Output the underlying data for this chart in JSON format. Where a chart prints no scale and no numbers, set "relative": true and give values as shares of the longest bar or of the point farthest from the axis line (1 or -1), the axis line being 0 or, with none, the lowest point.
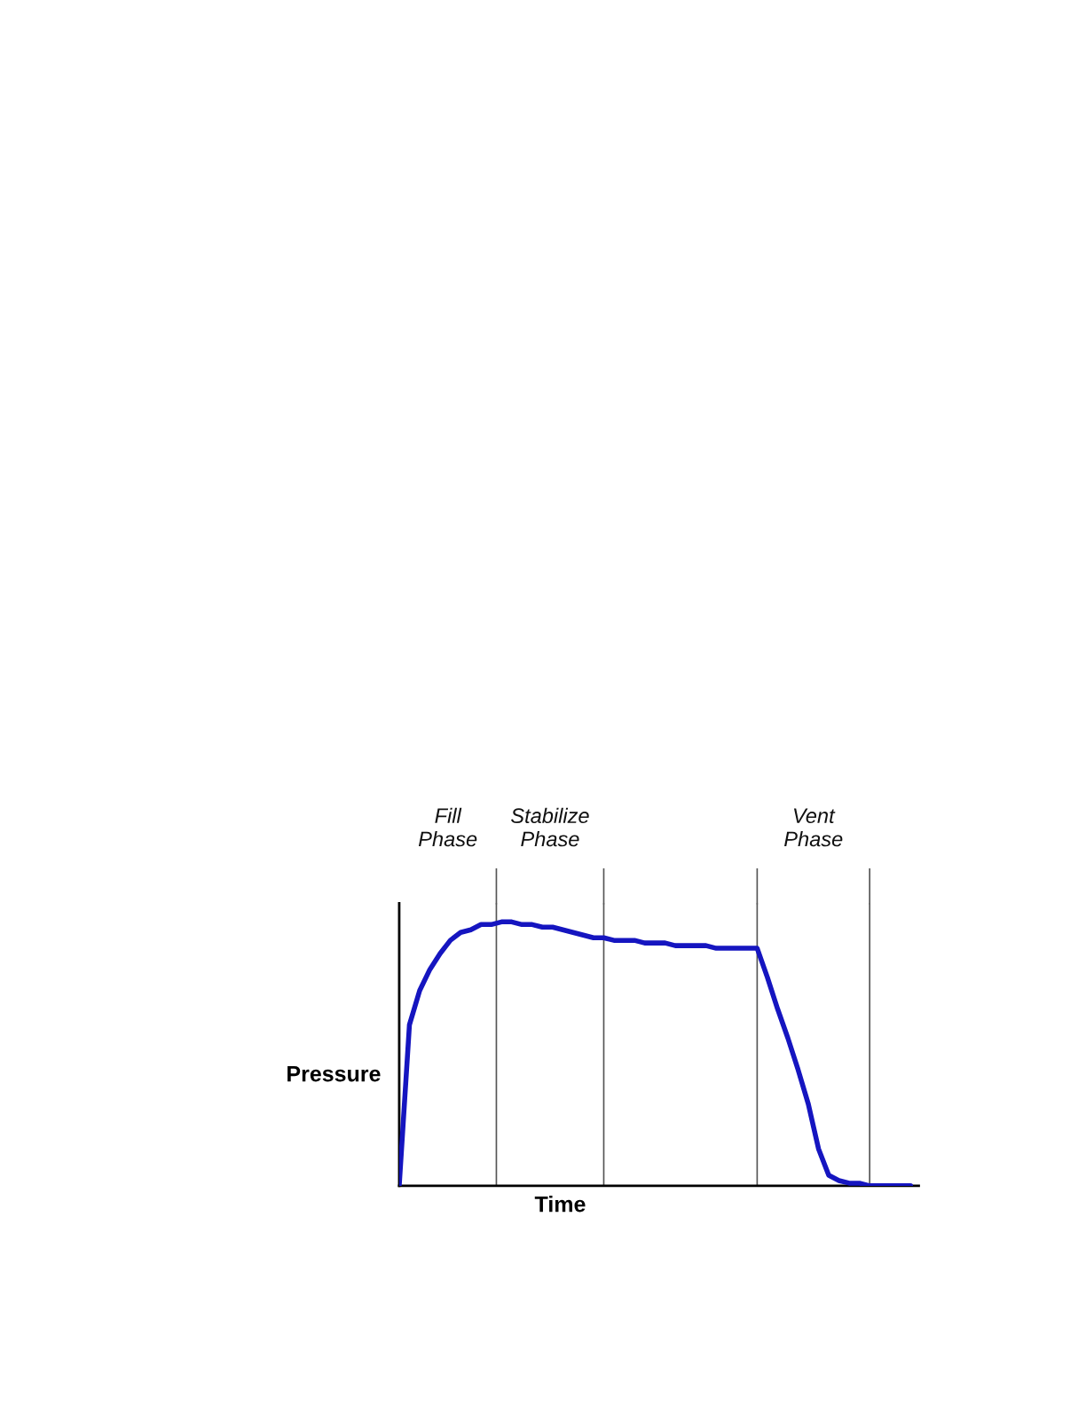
{
  "chart_data": {
    "type": "line",
    "relative": true,
    "xlabel": "Time",
    "ylabel": "Pressure",
    "legend": false,
    "marker": "none",
    "line_style": "solid",
    "categories": [
      null,
      null,
      null,
      null,
      null,
      null,
      null,
      null,
      null,
      null,
      null,
      null,
      null,
      null,
      null,
      null,
      null,
      null,
      null,
      null,
      null,
      null,
      null,
      null,
      null,
      null,
      null,
      null,
      null,
      null,
      null,
      null,
      null,
      null,
      null,
      null,
      null,
      null,
      null,
      null,
      null,
      null,
      null,
      null,
      null,
      null,
      null,
      null,
      null,
      null,
      null
    ],
    "series": [
      {
        "color": "#1515c0",
        "values": [
          0,
          0.61,
          0.74,
          0.82,
          0.88,
          0.93,
          0.96,
          0.97,
          0.99,
          0.99,
          1.0,
          1.0,
          0.99,
          0.99,
          0.98,
          0.98,
          0.97,
          0.96,
          0.95,
          0.94,
          0.94,
          0.93,
          0.93,
          0.93,
          0.92,
          0.92,
          0.92,
          0.91,
          0.91,
          0.91,
          0.91,
          0.9,
          0.9,
          0.9,
          0.9,
          0.9,
          0.79,
          0.67,
          0.56,
          0.44,
          0.31,
          0.14,
          0.04,
          0.02,
          0.01,
          0.01,
          0,
          0,
          0,
          0,
          0
        ]
      }
    ],
    "grid": "x",
    "annotations": [
      "Fill\nPhase",
      "Stabilize\nPhase",
      "Vent\nPhase"
    ]
  }
}
